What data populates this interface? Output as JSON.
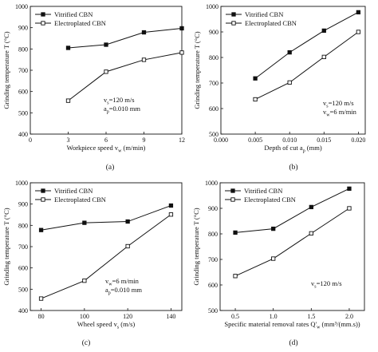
{
  "chart_data": [
    {
      "type": "line",
      "panel_label": "(a)",
      "xlabel": "Workpiece speed v",
      "xlabel_sub": "w",
      "xlabel_tail": " (m/min)",
      "ylabel": "Grinding temperature T (°C)",
      "xlim": [
        0,
        12
      ],
      "ylim": [
        400,
        1000
      ],
      "xticks": [
        0,
        3,
        6,
        9,
        12
      ],
      "yticks": [
        400,
        500,
        600,
        700,
        800,
        900,
        1000
      ],
      "legend_position": "top-left",
      "annotations": [
        {
          "main": "v",
          "sub": "s",
          "tail": "=120 m/s"
        },
        {
          "main": "a",
          "sub": "p",
          "tail": "=0.010 mm"
        }
      ],
      "series": [
        {
          "name": "Vitrified CBN",
          "marker": "filled-square",
          "x": [
            3,
            6,
            9,
            12
          ],
          "y": [
            805,
            820,
            878,
            897
          ]
        },
        {
          "name": "Electroplated CBN",
          "marker": "open-square",
          "x": [
            3,
            6,
            9,
            12
          ],
          "y": [
            557,
            693,
            749,
            783
          ]
        }
      ]
    },
    {
      "type": "line",
      "panel_label": "(b)",
      "xlabel": "Depth of cut a",
      "xlabel_sub": "p",
      "xlabel_tail": " (mm)",
      "ylabel": "Grinding temperature T (°C)",
      "xlim": [
        0,
        0.021
      ],
      "ylim": [
        500,
        1000
      ],
      "xticks": [
        "0.000",
        "0.005",
        "0.010",
        "0.015",
        "0.020"
      ],
      "yticks": [
        500,
        600,
        700,
        800,
        900,
        1000
      ],
      "legend_position": "top-left",
      "annotations": [
        {
          "main": "v",
          "sub": "s",
          "tail": "=120 m/s"
        },
        {
          "main": "v",
          "sub": "w",
          "tail": "=6 m/min"
        }
      ],
      "series": [
        {
          "name": "Vitrified CBN",
          "marker": "filled-square",
          "x": [
            0.005,
            0.01,
            0.015,
            0.02
          ],
          "y": [
            718,
            820,
            905,
            977
          ]
        },
        {
          "name": "Electroplated CBN",
          "marker": "open-square",
          "x": [
            0.005,
            0.01,
            0.015,
            0.02
          ],
          "y": [
            636,
            702,
            802,
            900
          ]
        }
      ]
    },
    {
      "type": "line",
      "panel_label": "(c)",
      "xlabel": "Wheel speed v",
      "xlabel_sub": "s",
      "xlabel_tail": " (m/s)",
      "ylabel": "Grinding temperature T (°C)",
      "xlim": [
        75,
        145
      ],
      "ylim": [
        400,
        1000
      ],
      "xticks": [
        80,
        100,
        120,
        140
      ],
      "yticks": [
        400,
        500,
        600,
        700,
        800,
        900,
        1000
      ],
      "legend_position": "top-left",
      "annotations": [
        {
          "main": "v",
          "sub": "w",
          "tail": "=6 m/min"
        },
        {
          "main": "a",
          "sub": "p",
          "tail": "=0.010 mm"
        }
      ],
      "series": [
        {
          "name": "Vitrified CBN",
          "marker": "filled-square",
          "x": [
            80,
            100,
            120,
            140
          ],
          "y": [
            778,
            812,
            818,
            893
          ]
        },
        {
          "name": "Electroplated CBN",
          "marker": "open-square",
          "x": [
            80,
            100,
            120,
            140
          ],
          "y": [
            456,
            540,
            702,
            851
          ]
        }
      ]
    },
    {
      "type": "line",
      "panel_label": "(d)",
      "xlabel": "Specific material removal rates Q'",
      "xlabel_sub": "w",
      "xlabel_tail": " (mm³/(mm.s))",
      "ylabel": "Grinding temperature T (°C)",
      "xlim": [
        0.3,
        2.2
      ],
      "ylim": [
        500,
        1000
      ],
      "xticks": [
        "0.5",
        "1.0",
        "1.5",
        "2.0"
      ],
      "yticks": [
        500,
        600,
        700,
        800,
        900,
        1000
      ],
      "legend_position": "top-left",
      "annotations": [
        {
          "main": "v",
          "sub": "s",
          "tail": "=120 m/s"
        }
      ],
      "series": [
        {
          "name": "Vitrified CBN",
          "marker": "filled-square",
          "x": [
            0.5,
            1.0,
            1.5,
            2.0
          ],
          "y": [
            805,
            820,
            905,
            977
          ]
        },
        {
          "name": "Electroplated CBN",
          "marker": "open-square",
          "x": [
            0.5,
            1.0,
            1.5,
            2.0
          ],
          "y": [
            635,
            703,
            802,
            900
          ]
        }
      ]
    }
  ]
}
